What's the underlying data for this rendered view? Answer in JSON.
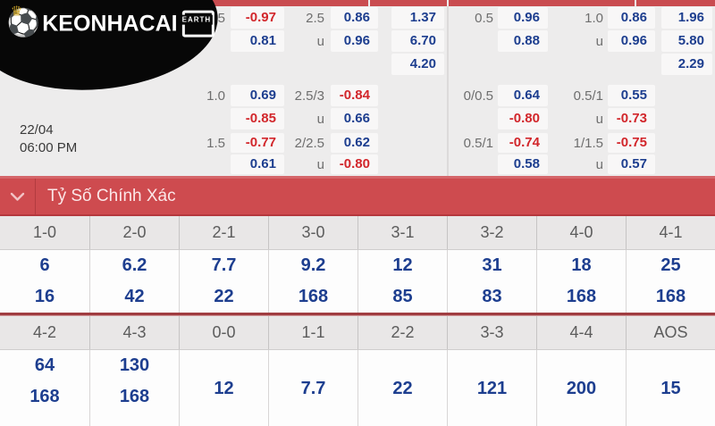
{
  "logo": {
    "brand": "KEONHACAI",
    "badge": "EARTH",
    "ball_icon": "⚽",
    "crown_icon": "♛"
  },
  "match": {
    "date": "22/04",
    "time": "06:00 PM",
    "obscured_fragment": ")"
  },
  "odds_panels": [
    {
      "groups": [
        {
          "hdp_label": "1/1.5",
          "hdp_odds": [
            "-0.97",
            "0.81"
          ],
          "ou_label": "2.5",
          "ou_sub": "u",
          "ou_odds": [
            "0.86",
            "0.96"
          ],
          "x12": [
            "1.37",
            "6.70",
            "4.20"
          ]
        },
        {
          "hdp_label": "1.0",
          "hdp_odds": [
            "0.69",
            "-0.85"
          ],
          "ou_label": "2.5/3",
          "ou_sub": "u",
          "ou_odds": [
            "-0.84",
            "0.66"
          ]
        },
        {
          "hdp_label": "1.5",
          "hdp_odds": [
            "-0.77",
            "0.61"
          ],
          "ou_label": "2/2.5",
          "ou_sub": "u",
          "ou_odds": [
            "0.62",
            "-0.80"
          ]
        }
      ]
    },
    {
      "groups": [
        {
          "hdp_label": "0.5",
          "hdp_odds": [
            "0.96",
            "0.88"
          ],
          "ou_label": "1.0",
          "ou_sub": "u",
          "ou_odds": [
            "0.86",
            "0.96"
          ],
          "x12": [
            "1.96",
            "5.80",
            "2.29"
          ]
        },
        {
          "hdp_label": "0/0.5",
          "hdp_odds": [
            "0.64",
            "-0.80"
          ],
          "ou_label": "0.5/1",
          "ou_sub": "u",
          "ou_odds": [
            "0.55",
            "-0.73"
          ]
        },
        {
          "hdp_label": "0.5/1",
          "hdp_odds": [
            "-0.74",
            "0.58"
          ],
          "ou_label": "1/1.5",
          "ou_sub": "u",
          "ou_odds": [
            "-0.75",
            "0.57"
          ]
        }
      ]
    }
  ],
  "section_bar": {
    "title": "Tỷ Số Chính Xác"
  },
  "score_tables": [
    {
      "headers": [
        "1-0",
        "2-0",
        "2-1",
        "3-0",
        "3-1",
        "3-2",
        "4-0",
        "4-1"
      ],
      "cells": [
        [
          "6",
          "16"
        ],
        [
          "6.2",
          "42"
        ],
        [
          "7.7",
          "22"
        ],
        [
          "9.2",
          "168"
        ],
        [
          "12",
          "85"
        ],
        [
          "31",
          "83"
        ],
        [
          "18",
          "168"
        ],
        [
          "25",
          "168"
        ]
      ]
    },
    {
      "headers": [
        "4-2",
        "4-3",
        "0-0",
        "1-1",
        "2-2",
        "3-3",
        "4-4",
        "AOS"
      ],
      "cells": [
        [
          "64",
          "168"
        ],
        [
          "130",
          "168"
        ],
        [
          "12"
        ],
        [
          "7.7"
        ],
        [
          "22"
        ],
        [
          "121"
        ],
        [
          "200"
        ],
        [
          "15"
        ]
      ]
    }
  ],
  "colors": {
    "accent_red": "#ce4b4f",
    "top_strip_red": "#c94c50",
    "dark_red_rule": "#a03c40",
    "odds_navy": "#1d3e8f",
    "odds_negative_red": "#d2262b",
    "section_background": "#edecec",
    "odds_cell_background": "#f8f7f7",
    "table_header_background": "#e9e7e7",
    "logo_background": "#070707"
  }
}
